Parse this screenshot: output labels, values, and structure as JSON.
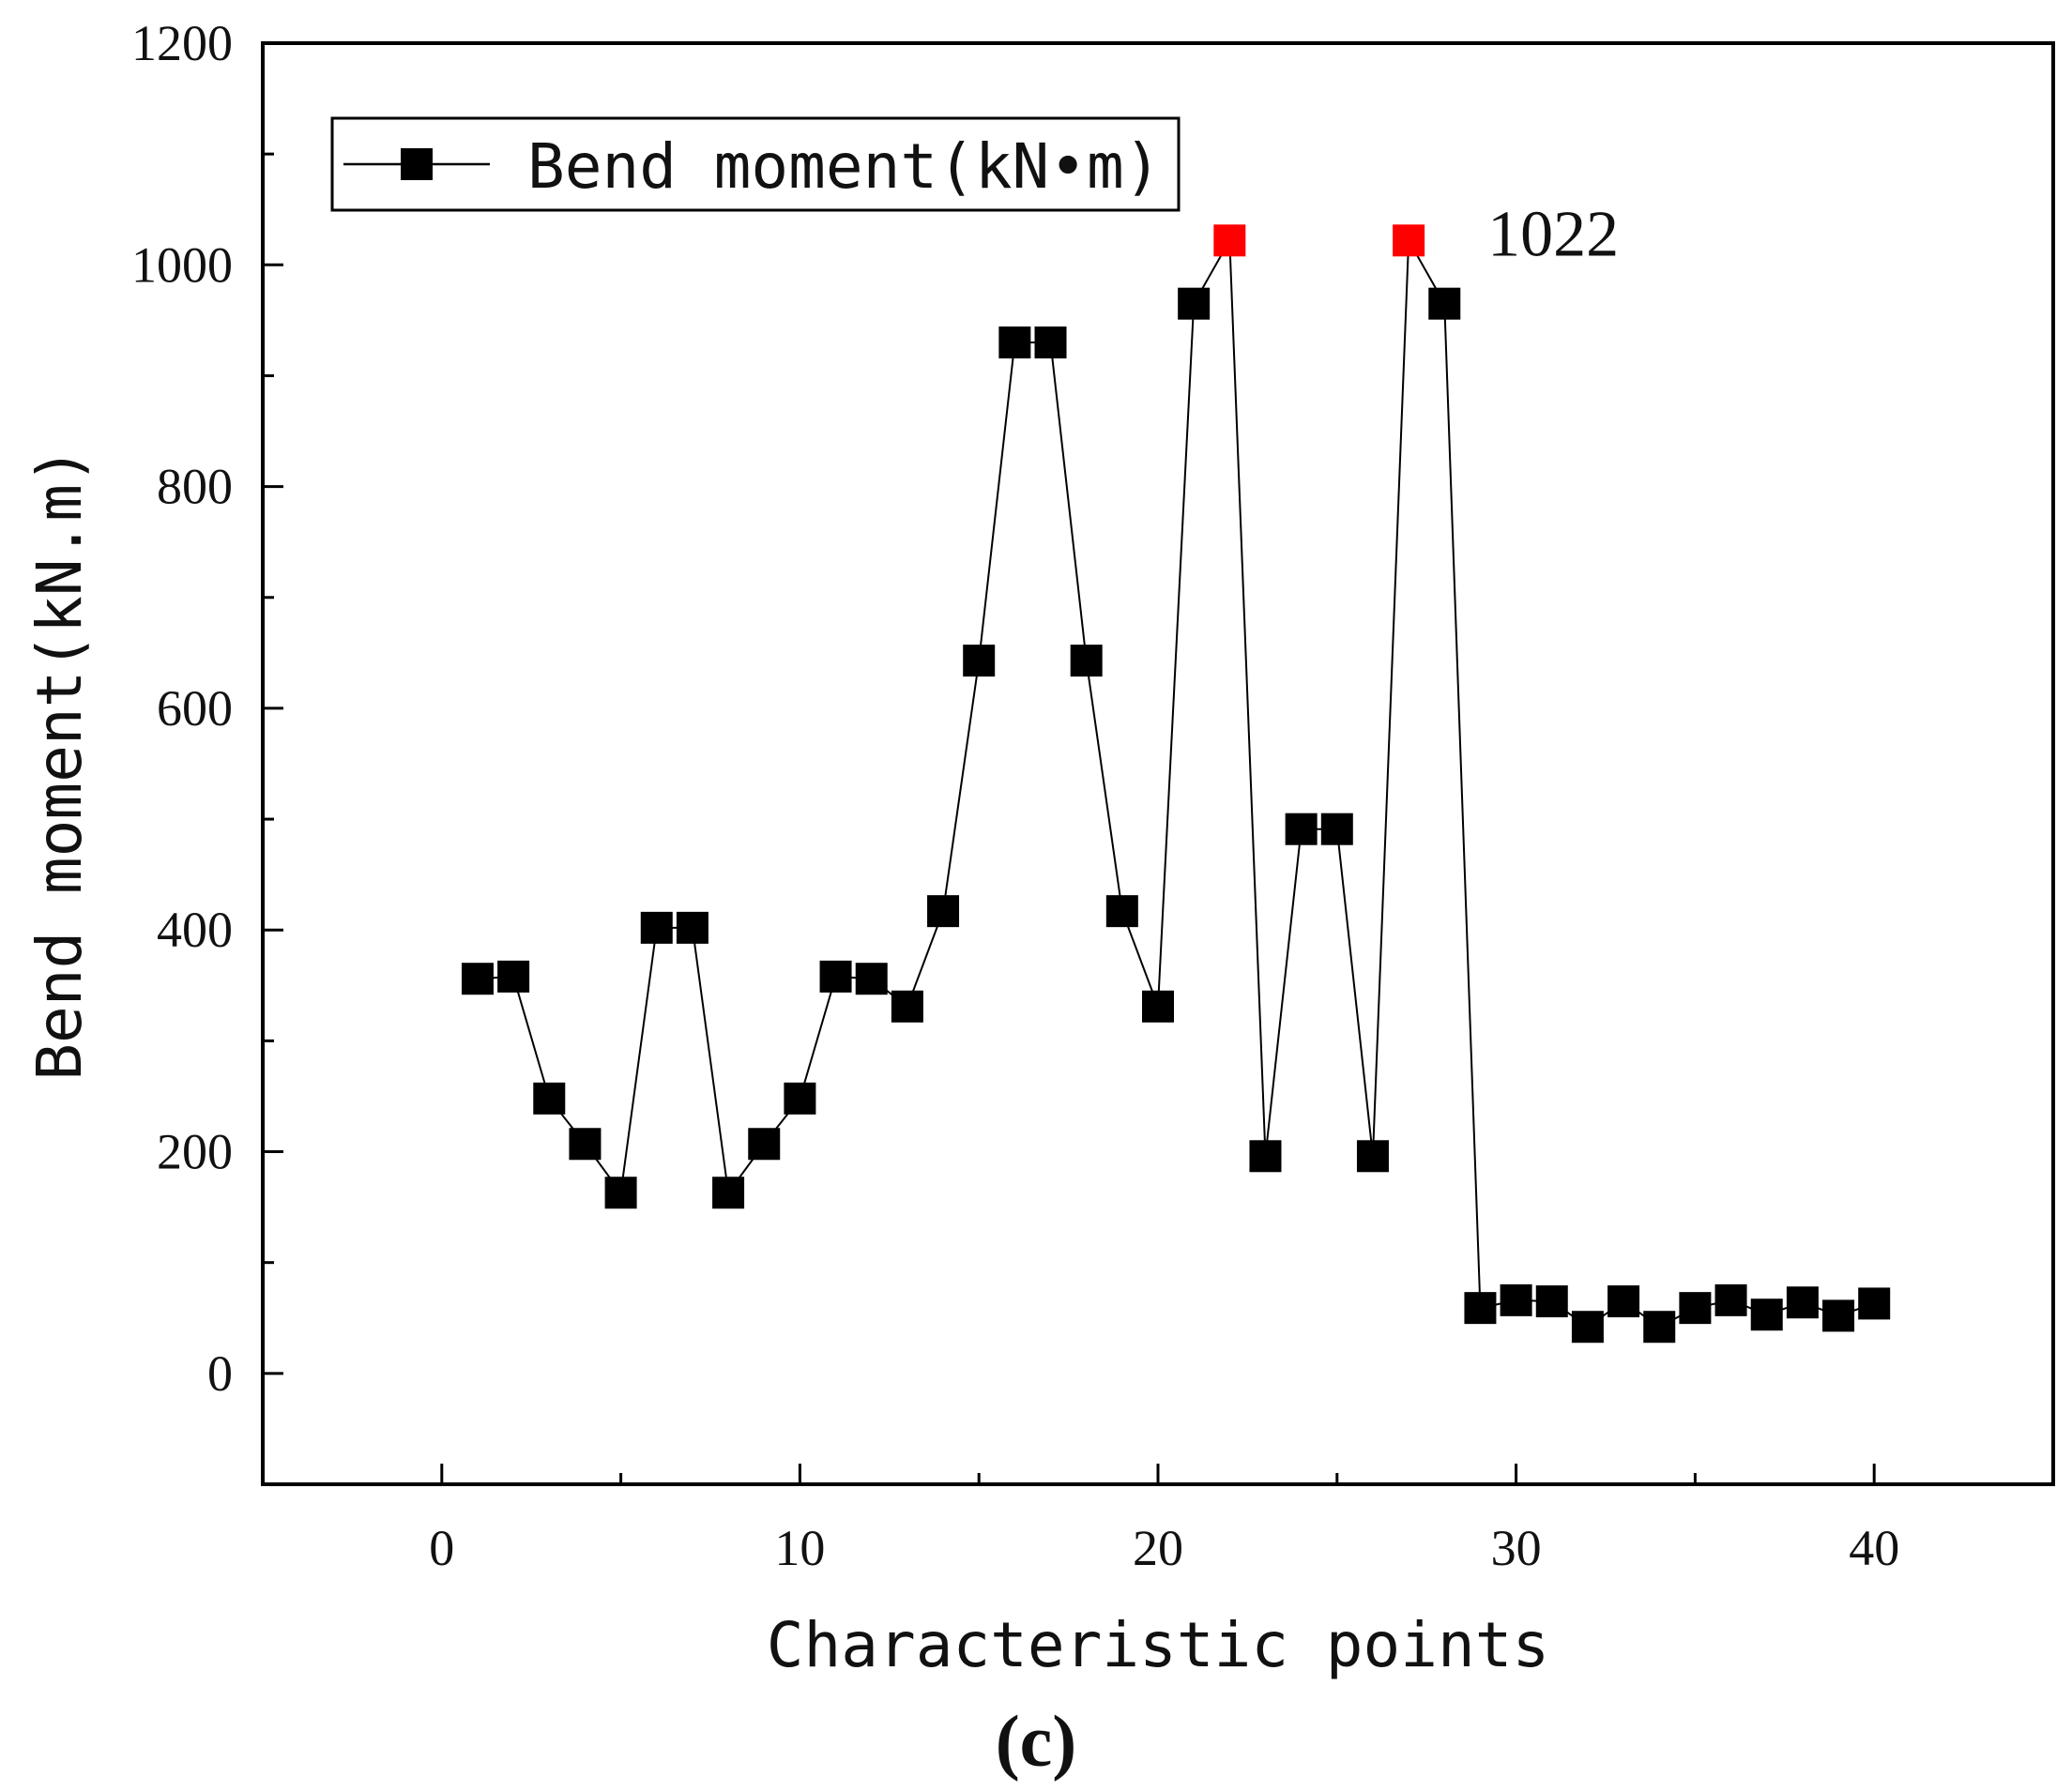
{
  "chart_data": {
    "type": "line",
    "title": "",
    "xlabel": "Characteristic points",
    "ylabel": "Bend moment(kN.m)",
    "xlim": [
      -5,
      45
    ],
    "ylim": [
      -100,
      1200
    ],
    "x_ticks": [
      0,
      10,
      20,
      30,
      40
    ],
    "y_ticks": [
      0,
      200,
      400,
      600,
      800,
      1000,
      1200
    ],
    "grid": false,
    "legend": {
      "position": "top-left",
      "entries": [
        "Bend moment(kN•m)"
      ]
    },
    "marker": "square",
    "colors": {
      "series": "#000000",
      "highlight": "#ff0000"
    },
    "series": [
      {
        "name": "Bend moment(kN•m)",
        "x": [
          1,
          2,
          3,
          4,
          5,
          6,
          7,
          8,
          9,
          10,
          11,
          12,
          13,
          14,
          15,
          16,
          17,
          18,
          19,
          20,
          21,
          22,
          23,
          24,
          25,
          26,
          27,
          28,
          29,
          30,
          31,
          32,
          33,
          34,
          35,
          36,
          37,
          38,
          39,
          40
        ],
        "values": [
          356,
          358,
          248,
          207,
          163,
          402,
          402,
          163,
          207,
          248,
          358,
          356,
          331,
          417,
          643,
          930,
          930,
          643,
          417,
          331,
          965,
          1022,
          196,
          491,
          491,
          196,
          1022,
          965,
          59,
          66,
          65,
          42,
          65,
          42,
          59,
          66,
          53,
          64,
          52,
          63
        ],
        "highlight_indices": [
          21,
          26
        ]
      }
    ],
    "annotations": [
      {
        "text": "1022",
        "x": 27,
        "y": 1022
      }
    ],
    "panel_label": "(c)"
  }
}
